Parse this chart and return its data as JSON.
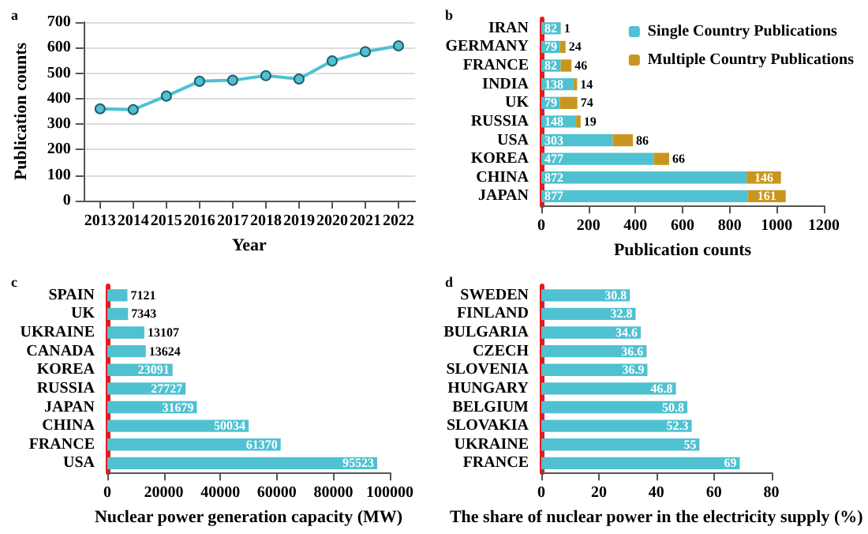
{
  "chart_data": [
    {
      "type": "line",
      "title": "a",
      "xlabel": "Year",
      "ylabel": "Publication counts",
      "categories": [
        "2013",
        "2014",
        "2015",
        "2016",
        "2017",
        "2018",
        "2019",
        "2020",
        "2021",
        "2022"
      ],
      "series": [
        {
          "color": "#4fc1d1",
          "values": [
            360,
            357,
            410,
            468,
            472,
            490,
            477,
            548,
            584,
            607
          ]
        }
      ],
      "ylim": [
        0,
        700
      ],
      "yticks": [
        0,
        100,
        200,
        300,
        400,
        500,
        600,
        700
      ],
      "grid": "y",
      "marker": "circle",
      "legend": false
    },
    {
      "type": "bar",
      "title": "b",
      "orientation": "horizontal",
      "stacked": true,
      "xlabel": "Publication counts",
      "categories": [
        "IRAN",
        "GERMANY",
        "FRANCE",
        "INDIA",
        "UK",
        "RUSSIA",
        "USA",
        "KOREA",
        "CHINA",
        "JAPAN"
      ],
      "series": [
        {
          "name": "Single Country Publications",
          "color": "#4fc1d1",
          "values": [
            82,
            79,
            82,
            138,
            79,
            148,
            303,
            477,
            872,
            877
          ]
        },
        {
          "name": "Multiple Country Publications",
          "color": "#c8961e",
          "values": [
            1,
            24,
            46,
            14,
            74,
            19,
            86,
            66,
            146,
            161
          ]
        }
      ],
      "xlim": [
        0,
        1200
      ],
      "xticks": [
        0,
        200,
        400,
        600,
        800,
        1000,
        1200
      ],
      "data_labels": true,
      "legend": "top right"
    },
    {
      "type": "bar",
      "title": "c",
      "orientation": "horizontal",
      "xlabel": "Nuclear power generation capacity (MW)",
      "categories": [
        "SPAIN",
        "UK",
        "UKRAINE",
        "CANADA",
        "KOREA",
        "RUSSIA",
        "JAPAN",
        "CHINA",
        "FRANCE",
        "USA"
      ],
      "series": [
        {
          "color": "#4fc1d1",
          "values": [
            7121,
            7343,
            13107,
            13624,
            23091,
            27727,
            31679,
            50034,
            61370,
            95523
          ]
        }
      ],
      "xlim": [
        0,
        100000
      ],
      "xticks": [
        0,
        20000,
        40000,
        60000,
        80000,
        100000
      ],
      "data_labels": true,
      "legend": false
    },
    {
      "type": "bar",
      "title": "d",
      "orientation": "horizontal",
      "xlabel": "The share of nuclear power in the electricity supply (%)",
      "categories": [
        "SWEDEN",
        "FINLAND",
        "BULGARIA",
        "CZECH",
        "SLOVENIA",
        "HUNGARY",
        "BELGIUM",
        "SLOVAKIA",
        "UKRAINE",
        "FRANCE"
      ],
      "series": [
        {
          "color": "#4fc1d1",
          "values": [
            30.8,
            32.8,
            34.6,
            36.6,
            36.9,
            46.8,
            50.8,
            52.3,
            55,
            69
          ]
        }
      ],
      "xlim": [
        0,
        80
      ],
      "xticks": [
        0,
        20,
        40,
        60,
        80
      ],
      "data_labels": true,
      "legend": false
    }
  ]
}
